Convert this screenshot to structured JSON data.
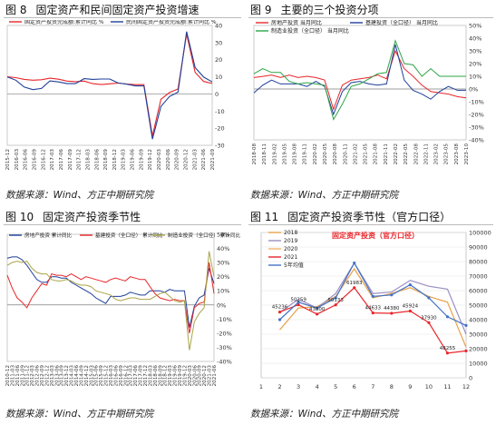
{
  "figures": [
    {
      "num": "图 8",
      "title": "固定资产和民间固定资产投资增速",
      "source": "数据来源：Wind、方正中期研究院"
    },
    {
      "num": "图 9",
      "title": "主要的三个投资分项",
      "source": "数据来源：Wind、方正中期研究院"
    },
    {
      "num": "图 10",
      "title": "固定资产投资季节性",
      "source": "数据来源：Wind、方正中期研究院"
    },
    {
      "num": "图 11",
      "title": "固定资产投资季节性（官方口径）",
      "source": "数据来源：Wind、方正中期研究院"
    }
  ],
  "chart_data": [
    {
      "type": "line",
      "ylim": [
        -30,
        40
      ],
      "yticks": [
        "40",
        "30",
        "20",
        "10",
        "0",
        "-10",
        "-20",
        "-30"
      ],
      "xticks": [
        "2015-12",
        "2016-03",
        "2016-06",
        "2016-09",
        "2016-12",
        "2017-03",
        "2017-06",
        "2017-09",
        "2017-12",
        "2018-03",
        "2018-06",
        "2018-09",
        "2018-12",
        "2019-03",
        "2019-06",
        "2019-09",
        "2019-12",
        "2020-03",
        "2020-06",
        "2020-09",
        "2020-12",
        "2021-03",
        "2021-06",
        "2021-09"
      ],
      "series": [
        {
          "name": "固定资产投资完成额:累计同比  %",
          "color": "#e8262a",
          "values": [
            10,
            9.5,
            8.5,
            8,
            8.3,
            9.2,
            8.6,
            7.5,
            7.2,
            7.5,
            6,
            5.5,
            5.9,
            6.3,
            5.8,
            5.4,
            5.4,
            -24.5,
            -3.1,
            0.8,
            2.9,
            35,
            12.6,
            7.3,
            6.1
          ]
        },
        {
          "name": "民间固定资产投资完成额:累计同比  %",
          "color": "#1f3f99",
          "values": [
            10,
            8,
            4,
            2.5,
            3.2,
            7.6,
            7,
            6,
            6,
            8.9,
            8.5,
            8.7,
            8.7,
            6.4,
            5.7,
            4.7,
            4.7,
            -26.4,
            -7.3,
            -1.5,
            1,
            36.4,
            15.4,
            9.8,
            7
          ]
        }
      ]
    },
    {
      "type": "line",
      "ylim": [
        -40,
        50
      ],
      "yticks": [
        "50%",
        "40%",
        "30%",
        "20%",
        "10%",
        "0%",
        "-10%",
        "-20%",
        "-30%",
        "-40%"
      ],
      "xticks": [
        "2018-08",
        "2018-11",
        "2019-02",
        "2019-05",
        "2019-08",
        "2019-11",
        "2020-02",
        "2020-05",
        "2020-08",
        "2020-11",
        "2021-02",
        "2021-05",
        "2021-08",
        "2021-11",
        "2022-02",
        "2022-05",
        "2022-08",
        "2022-11",
        "2023-02",
        "2023-05",
        "2023-08",
        "2023-10"
      ],
      "series": [
        {
          "name": "房地产投资  当月同比",
          "color": "#e8262a",
          "values": [
            9,
            9.9,
            11,
            9,
            11,
            9,
            10,
            9,
            7,
            -16,
            3,
            7,
            8,
            9,
            11,
            8,
            30,
            16,
            10,
            3,
            -2,
            -3,
            -4,
            -6,
            -7
          ]
        },
        {
          "name": "基建投资（全口径）  当月同比",
          "color": "#1f3f99",
          "values": [
            -3,
            3,
            7,
            4,
            4,
            4,
            2,
            6,
            2,
            -20,
            -2,
            5,
            6,
            4,
            3,
            4,
            35,
            7,
            -1,
            -4,
            -8,
            -2,
            2,
            -1,
            -1
          ]
        },
        {
          "name": "制造业投资（全口径）  当月同比",
          "color": "#2ea446",
          "values": [
            12,
            16,
            13,
            13,
            6,
            4,
            5,
            4,
            3,
            -24,
            -12,
            2,
            4,
            8,
            12,
            13,
            38,
            20,
            19,
            10,
            16,
            10,
            10,
            10,
            10
          ]
        }
      ]
    },
    {
      "type": "line",
      "ylim": [
        -40,
        50
      ],
      "yticks": [
        "50%",
        "40%",
        "30%",
        "20%",
        "10%",
        "0%",
        "-10%",
        "-20%",
        "-30%",
        "-40%"
      ],
      "xticks": [
        "2010-12",
        "2011-03",
        "2011-06",
        "2011-09",
        "2011-12",
        "2012-03",
        "2012-06",
        "2012-09",
        "2012-12",
        "2013-03",
        "2013-06",
        "2013-09",
        "2013-12",
        "2014-03",
        "2014-06",
        "2014-09",
        "2014-12",
        "2015-03",
        "2015-06",
        "2015-09",
        "2015-12",
        "2016-03",
        "2016-06",
        "2016-09",
        "2016-12",
        "2017-03",
        "2017-06",
        "2017-09",
        "2017-12",
        "2018-03",
        "2018-06",
        "2018-09",
        "2018-12",
        "2019-03",
        "2019-06",
        "2019-09",
        "2019-12",
        "2020-03",
        "2020-06",
        "2020-09",
        "2020-12",
        "2021-03",
        "2021-06"
      ],
      "series": [
        {
          "name": "房地产投资  累计同比",
          "color": "#1f3f99",
          "values": [
            33,
            34,
            34,
            32,
            28,
            23,
            18,
            16,
            16,
            20,
            20,
            19,
            19,
            16,
            14,
            12,
            10,
            8,
            5,
            3,
            1,
            6,
            6,
            6,
            7,
            9,
            8,
            7,
            7,
            10,
            10,
            10,
            9,
            11,
            10,
            10,
            10,
            -16,
            -1,
            5,
            7,
            26,
            15
          ]
        },
        {
          "name": "基建投资（全口径）  累计同比",
          "color": "#e8262a",
          "values": [
            21,
            12,
            5,
            2,
            -2,
            5,
            10,
            15,
            14,
            22,
            21,
            21,
            20,
            22,
            20,
            18,
            20,
            19,
            18,
            17,
            16,
            18,
            19,
            18,
            17,
            20,
            19,
            18,
            18,
            13,
            8,
            5,
            4,
            3,
            4,
            3,
            3,
            -20,
            -2,
            1,
            2,
            30,
            8
          ]
        },
        {
          "name": "制造业投资（全口径）  累计同比",
          "color": "#a8a446",
          "values": [
            28,
            30,
            31,
            30,
            31,
            26,
            23,
            22,
            22,
            18,
            17,
            17,
            18,
            17,
            15,
            14,
            14,
            13,
            10,
            9,
            8,
            7,
            4,
            3,
            4,
            5,
            5,
            4,
            4,
            4,
            6,
            8,
            9,
            6,
            3,
            2,
            3,
            -32,
            -12,
            -6,
            -2,
            38,
            20
          ]
        }
      ]
    },
    {
      "type": "line",
      "ylim": [
        0,
        100000
      ],
      "yticks": [
        "100000",
        "90000",
        "80000",
        "70000",
        "60000",
        "50000",
        "40000",
        "30000",
        "20000",
        "10000",
        "0"
      ],
      "xticks": [
        "1",
        "2",
        "3",
        "4",
        "5",
        "6",
        "7",
        "8",
        "9",
        "10",
        "11",
        "12"
      ],
      "title": "固定资产投资（官方口径）",
      "data_labels": [
        "45236",
        "50259",
        "43800",
        "50133",
        "61983",
        "44633",
        "44380",
        "45924",
        "37930",
        "48255"
      ],
      "series": [
        {
          "name": "2018",
          "color": "#e8a24a",
          "values": [
            null,
            33000,
            48000,
            49000,
            56000,
            75000,
            55000,
            58000,
            62000,
            56000,
            52000,
            21000
          ]
        },
        {
          "name": "2019",
          "color": "#9b8ec4",
          "values": [
            null,
            45000,
            54000,
            48000,
            58000,
            79000,
            58000,
            59000,
            67000,
            63000,
            61000,
            30000
          ]
        },
        {
          "name": "2020",
          "color": "#f2b46c",
          "values": [
            null,
            null,
            null,
            null,
            null,
            null,
            null,
            null,
            null,
            null,
            null,
            null
          ]
        },
        {
          "name": "2021",
          "color": "#e8262a",
          "values": [
            null,
            45236,
            50259,
            43800,
            50133,
            61983,
            44633,
            44380,
            45924,
            37930,
            17000,
            18500
          ]
        },
        {
          "name": "5年均值",
          "color": "#4472c4",
          "values": [
            null,
            40000,
            52000,
            48000,
            55000,
            79000,
            56000,
            57000,
            64000,
            55000,
            42000,
            36000
          ]
        }
      ]
    }
  ]
}
